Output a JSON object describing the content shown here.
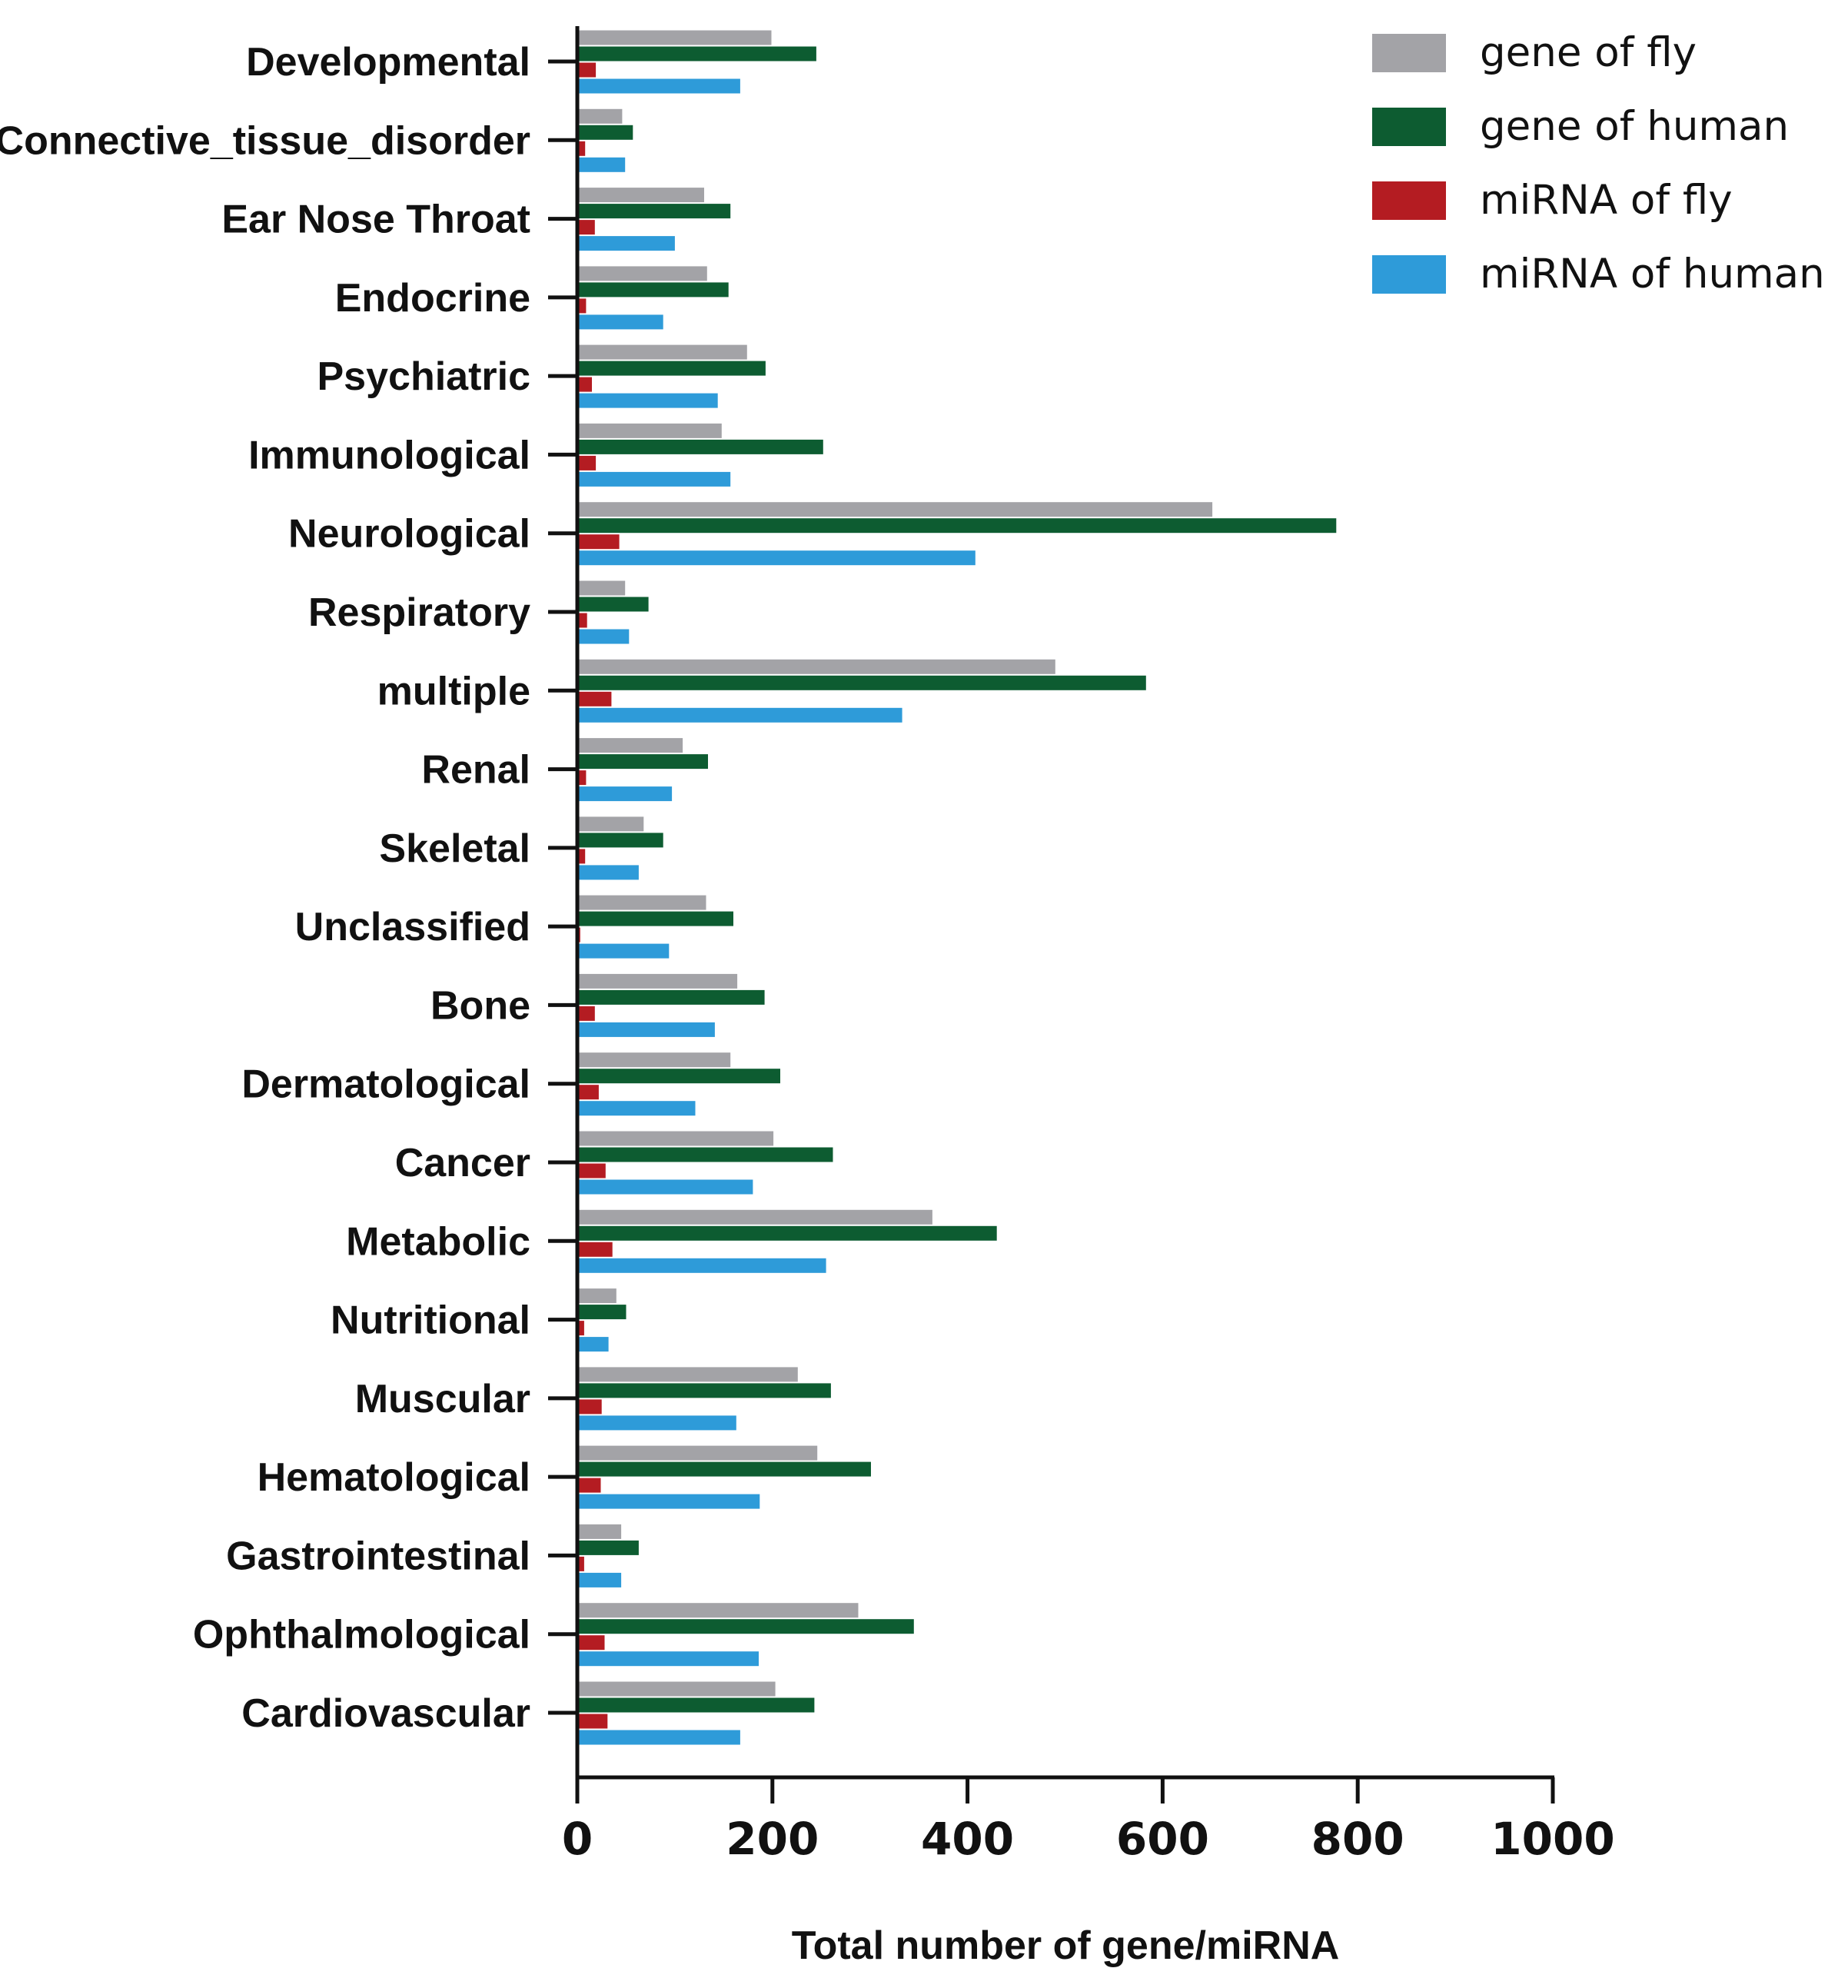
{
  "chart_data": {
    "type": "bar",
    "orientation": "horizontal",
    "xlabel": "Total number of gene/miRNA",
    "ylabel": "",
    "xlim": [
      0,
      1000
    ],
    "xticks": [
      "0",
      "200",
      "400",
      "600",
      "800",
      "1000"
    ],
    "grid": false,
    "legend_position": "top-right",
    "categories": [
      "Developmental",
      "Connective_tissue_disorder",
      "Ear Nose Throat",
      "Endocrine",
      "Psychiatric",
      "Immunological",
      "Neurological",
      "Respiratory",
      "multiple",
      "Renal",
      "Skeletal",
      "Unclassified",
      "Bone",
      "Dermatological",
      "Cancer",
      "Metabolic",
      "Nutritional",
      "Muscular",
      "Hematological",
      "Gastrointestinal",
      "Ophthalmological",
      "Cardiovascular"
    ],
    "series": [
      {
        "name": "gene of fly",
        "color": "#a3a3a7",
        "values": [
          199,
          46,
          130,
          133,
          174,
          148,
          651,
          49,
          490,
          108,
          68,
          132,
          164,
          157,
          201,
          364,
          40,
          226,
          246,
          45,
          288,
          203
        ]
      },
      {
        "name": "gene of human",
        "color": "#0d5c31",
        "values": [
          245,
          57,
          157,
          155,
          193,
          252,
          778,
          73,
          583,
          134,
          88,
          160,
          192,
          208,
          262,
          430,
          50,
          260,
          301,
          63,
          345,
          243
        ]
      },
      {
        "name": "miRNA of fly",
        "color": "#b41c22",
        "values": [
          19,
          8,
          18,
          9,
          15,
          19,
          43,
          10,
          35,
          9,
          8,
          3,
          18,
          22,
          29,
          36,
          7,
          25,
          24,
          7,
          28,
          31
        ]
      },
      {
        "name": "miRNA of human",
        "color": "#2e9bd9",
        "values": [
          167,
          49,
          100,
          88,
          144,
          157,
          408,
          53,
          333,
          97,
          63,
          94,
          141,
          121,
          180,
          255,
          32,
          163,
          187,
          45,
          186,
          167
        ]
      }
    ]
  }
}
